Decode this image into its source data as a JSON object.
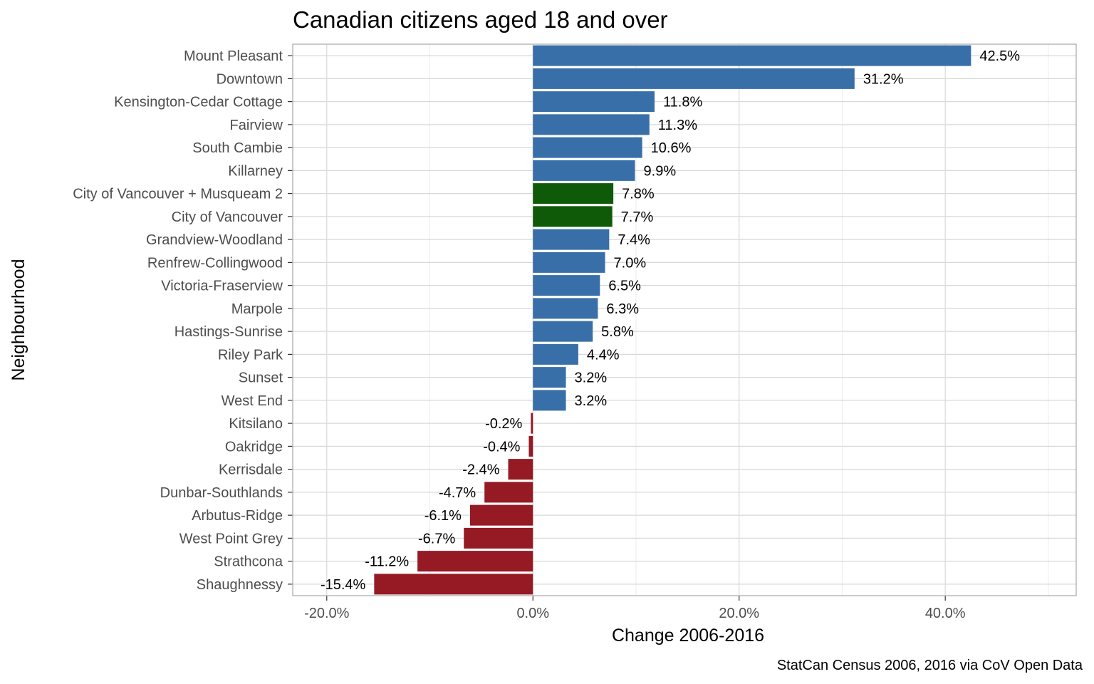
{
  "chart_data": {
    "type": "bar",
    "orientation": "horizontal",
    "title": "Canadian citizens aged 18 and over",
    "xlabel": "Change 2006-2016",
    "ylabel": "Neighbourhood",
    "caption": "StatCan Census 2006, 2016 via CoV Open Data",
    "xlim": [
      -0.233,
      0.527
    ],
    "x_ticks": [
      {
        "value": -0.2,
        "label": "-20.0%"
      },
      {
        "value": 0.0,
        "label": "0.0%"
      },
      {
        "value": 0.2,
        "label": "20.0%"
      },
      {
        "value": 0.4,
        "label": "40.0%"
      }
    ],
    "grid": true,
    "legend": "none",
    "colors": {
      "positive": "#386fa8",
      "total": "#0f5a08",
      "negative": "#961a24"
    },
    "categories": [
      "Mount Pleasant",
      "Downtown",
      "Kensington-Cedar Cottage",
      "Fairview",
      "South Cambie",
      "Killarney",
      "City of Vancouver + Musqueam 2",
      "City of Vancouver",
      "Grandview-Woodland",
      "Renfrew-Collingwood",
      "Victoria-Fraserview",
      "Marpole",
      "Hastings-Sunrise",
      "Riley Park",
      "Sunset",
      "West End",
      "Kitsilano",
      "Oakridge",
      "Kerrisdale",
      "Dunbar-Southlands",
      "Arbutus-Ridge",
      "West Point Grey",
      "Strathcona",
      "Shaughnessy"
    ],
    "values": [
      0.425,
      0.312,
      0.118,
      0.113,
      0.106,
      0.099,
      0.078,
      0.077,
      0.074,
      0.07,
      0.065,
      0.063,
      0.058,
      0.044,
      0.032,
      0.032,
      -0.002,
      -0.004,
      -0.024,
      -0.047,
      -0.061,
      -0.067,
      -0.112,
      -0.154
    ],
    "labels": [
      "42.5%",
      "31.2%",
      "11.8%",
      "11.3%",
      "10.6%",
      "9.9%",
      "7.8%",
      "7.7%",
      "7.4%",
      "7.0%",
      "6.5%",
      "6.3%",
      "5.8%",
      "4.4%",
      "3.2%",
      "3.2%",
      "-0.2%",
      "-0.4%",
      "-2.4%",
      "-4.7%",
      "-6.1%",
      "-6.7%",
      "-11.2%",
      "-15.4%"
    ],
    "bar_colors": [
      "positive",
      "positive",
      "positive",
      "positive",
      "positive",
      "positive",
      "total",
      "total",
      "positive",
      "positive",
      "positive",
      "positive",
      "positive",
      "positive",
      "positive",
      "positive",
      "negative",
      "negative",
      "negative",
      "negative",
      "negative",
      "negative",
      "negative",
      "negative"
    ]
  }
}
